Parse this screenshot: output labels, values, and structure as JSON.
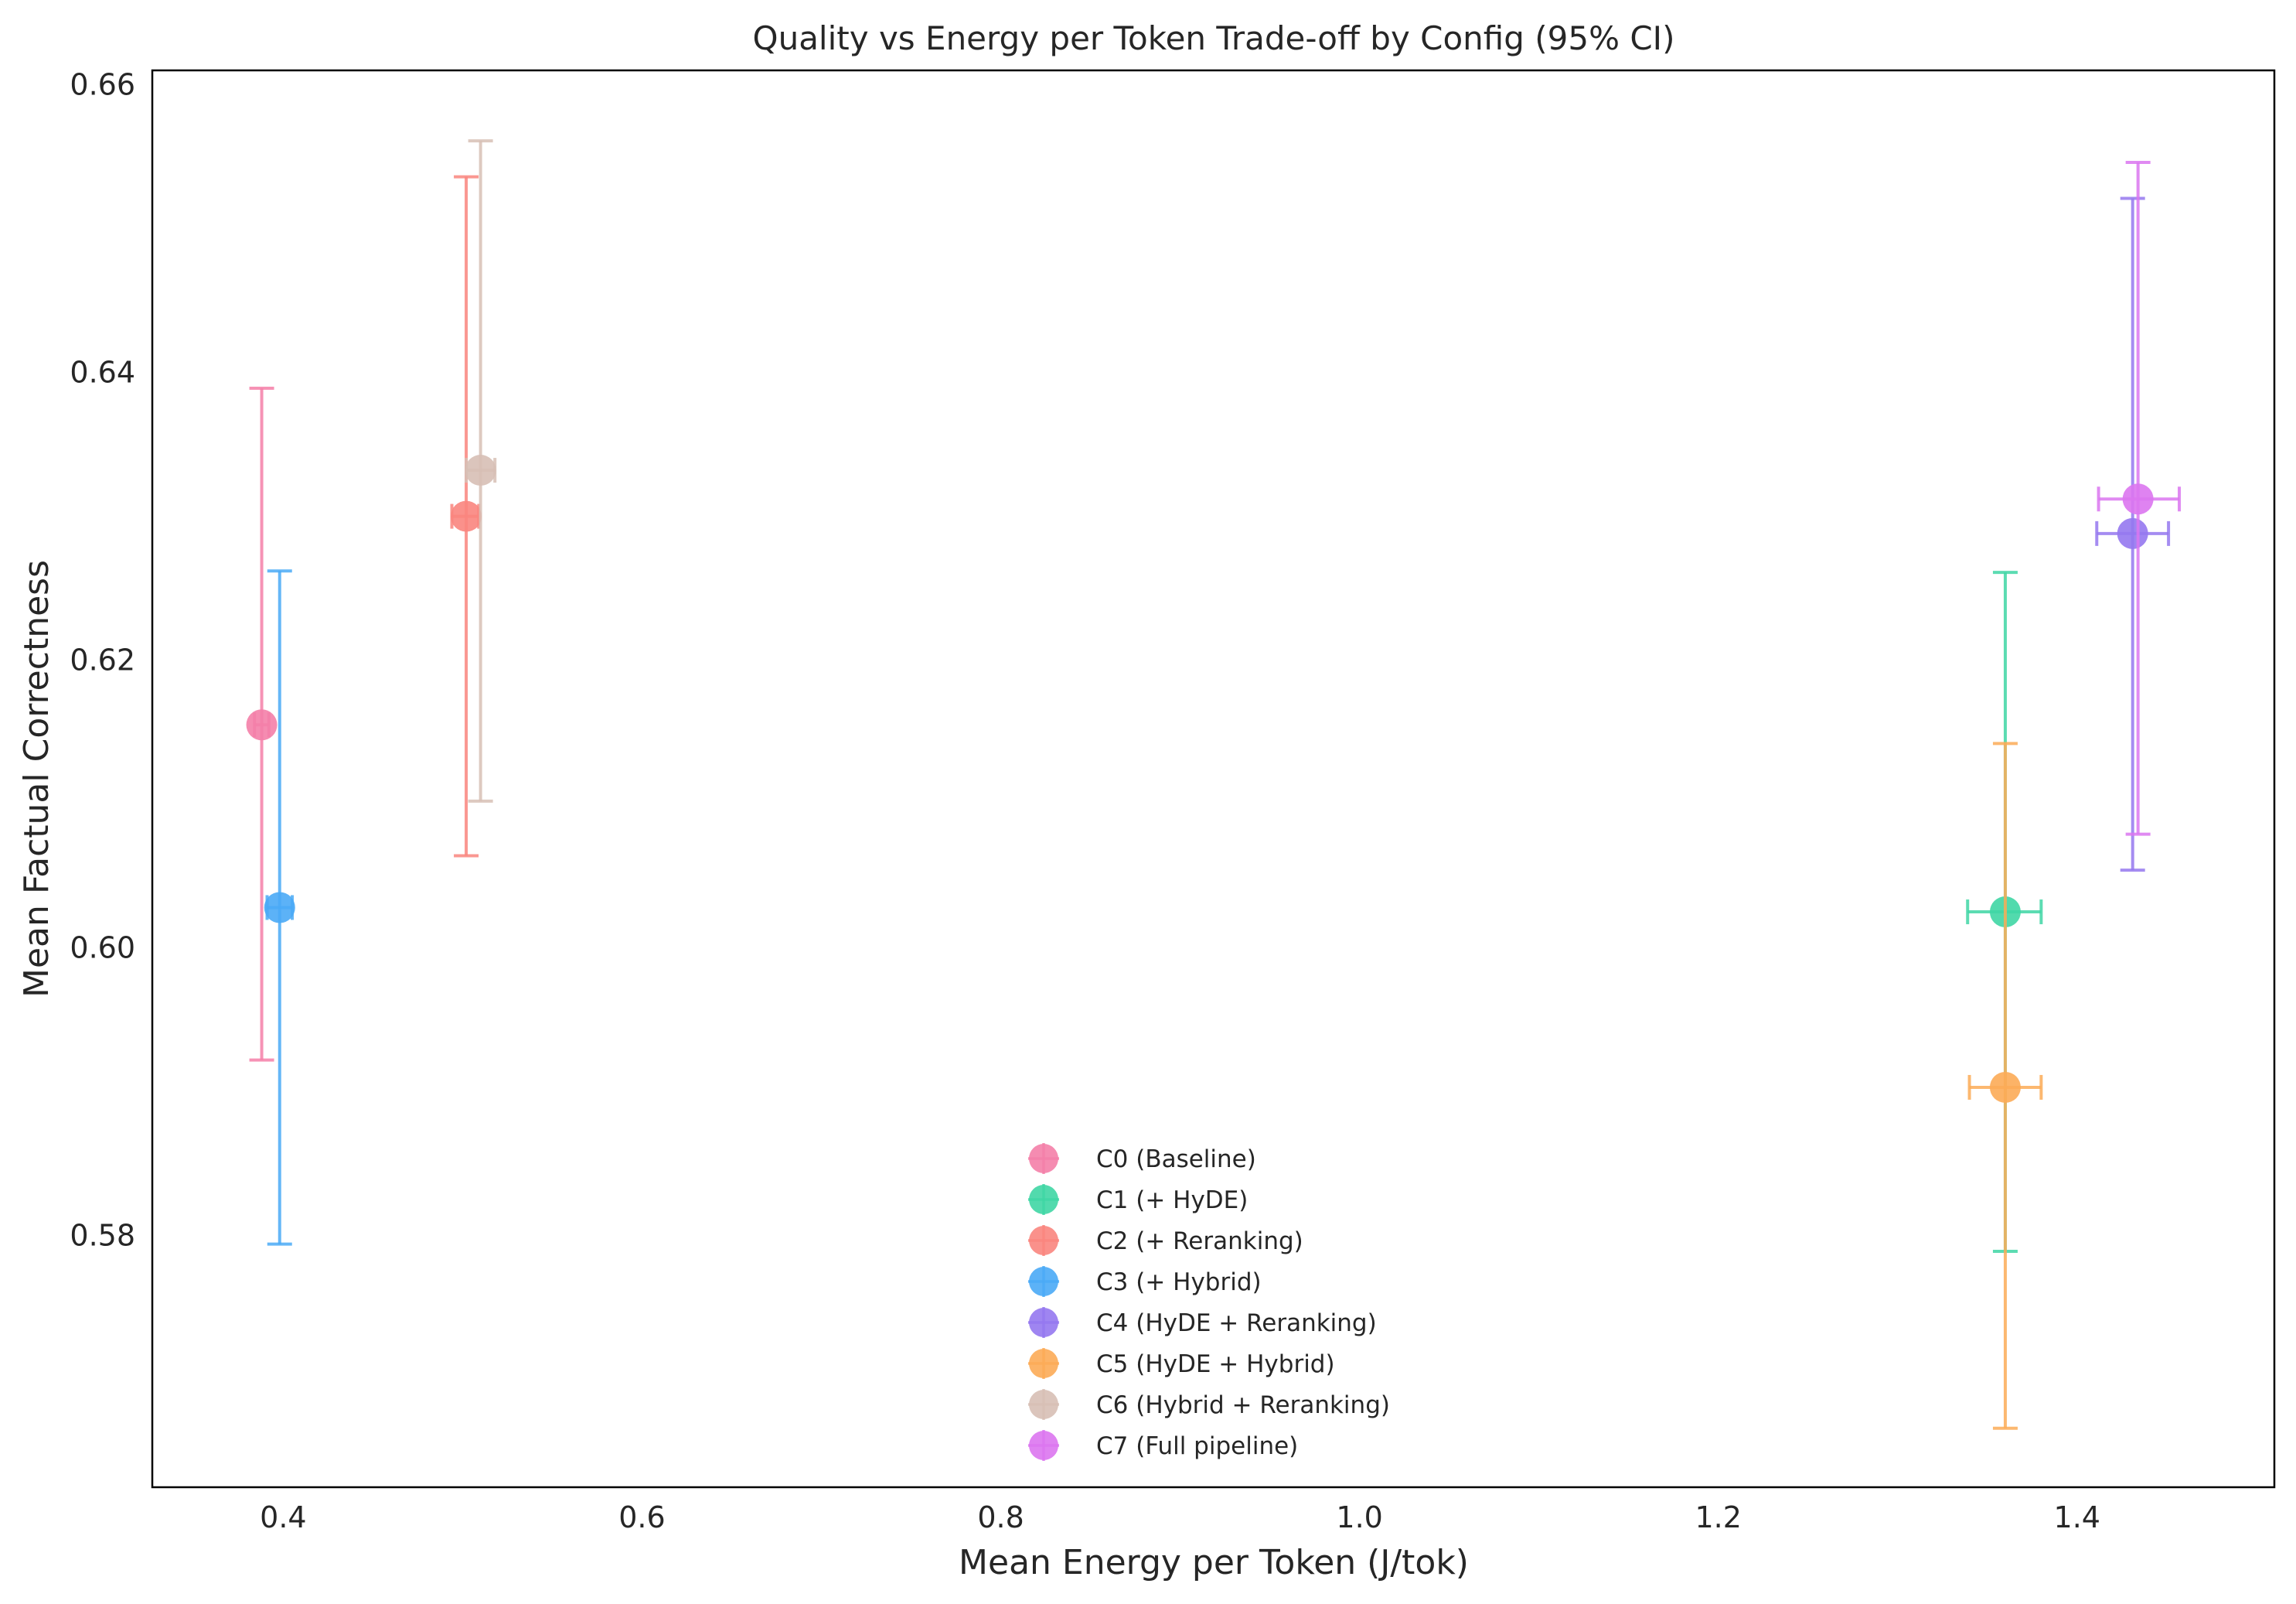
{
  "chart_data": {
    "type": "scatter",
    "title": "Quality vs Energy per Token Trade-off by Config (95% CI)",
    "xlabel": "Mean Energy per Token (J/tok)",
    "ylabel": "Mean Factual Correctness",
    "xlim": [
      0.327,
      1.51
    ],
    "ylim": [
      0.5625,
      0.661
    ],
    "xticks": [
      0.4,
      0.6,
      0.8,
      1.0,
      1.2,
      1.4
    ],
    "xtick_labels": [
      "0.4",
      "0.6",
      "0.8",
      "1.0",
      "1.2",
      "1.4"
    ],
    "yticks": [
      0.58,
      0.6,
      0.62,
      0.64,
      0.66
    ],
    "ytick_labels": [
      "0.58",
      "0.60",
      "0.62",
      "0.64",
      "0.66"
    ],
    "grid": false,
    "legend_position": "lower-center",
    "series": [
      {
        "name": "C0 (Baseline)",
        "color": "#f47fa8",
        "x": 0.388,
        "y": 0.6155,
        "x_ci": [
          0.384,
          0.392
        ],
        "y_ci": [
          0.5922,
          0.6389
        ]
      },
      {
        "name": "C1 (+ HyDE)",
        "color": "#3fd6a4",
        "x": 1.36,
        "y": 0.6025,
        "x_ci": [
          1.339,
          1.38
        ],
        "y_ci": [
          0.5789,
          0.6261
        ]
      },
      {
        "name": "C2 (+ Reranking)",
        "color": "#f9857e",
        "x": 0.502,
        "y": 0.63,
        "x_ci": [
          0.494,
          0.509
        ],
        "y_ci": [
          0.6064,
          0.6536
        ]
      },
      {
        "name": "C3 (+ Hybrid)",
        "color": "#4aaaf6",
        "x": 0.398,
        "y": 0.6028,
        "x_ci": [
          0.391,
          0.405
        ],
        "y_ci": [
          0.5794,
          0.6262
        ]
      },
      {
        "name": "C4 (HyDE + Reranking)",
        "color": "#9578ef",
        "x": 1.431,
        "y": 0.6288,
        "x_ci": [
          1.411,
          1.451
        ],
        "y_ci": [
          0.6054,
          0.6521
        ]
      },
      {
        "name": "C5 (HyDE + Hybrid)",
        "color": "#fcab57",
        "x": 1.36,
        "y": 0.5903,
        "x_ci": [
          1.34,
          1.38
        ],
        "y_ci": [
          0.5666,
          0.6142
        ]
      },
      {
        "name": "C6 (Hybrid + Reranking)",
        "color": "#d7bfb5",
        "x": 0.51,
        "y": 0.6332,
        "x_ci": [
          0.502,
          0.518
        ],
        "y_ci": [
          0.6102,
          0.6561
        ]
      },
      {
        "name": "C7 (Full pipeline)",
        "color": "#db76f0",
        "x": 1.434,
        "y": 0.6312,
        "x_ci": [
          1.412,
          1.457
        ],
        "y_ci": [
          0.6079,
          0.6546
        ]
      }
    ]
  }
}
